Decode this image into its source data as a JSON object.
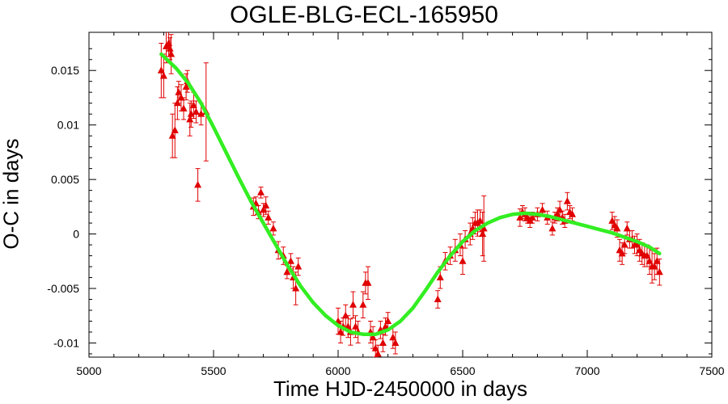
{
  "chart_data": {
    "type": "scatter",
    "title": "OGLE-BLG-ECL-165950",
    "xlabel": "Time HJD-2450000 in days",
    "ylabel": "O-C in days",
    "xlim": [
      5000,
      7500
    ],
    "ylim": [
      -0.0113,
      0.0185
    ],
    "x_ticks": [
      5000,
      5500,
      6000,
      6500,
      7000,
      7500
    ],
    "x_tick_labels": [
      "5000",
      "5500",
      "6000",
      "6500",
      "7000",
      "7500"
    ],
    "y_ticks": [
      0.015,
      0.01,
      0.005,
      0,
      -0.005,
      -0.01
    ],
    "y_tick_labels": [
      "0.015",
      "0.01",
      "0.005",
      "0",
      "-0.005",
      "-0.01"
    ],
    "grid": false,
    "legend": "none",
    "colors": {
      "points": "#e00000",
      "fit": "#33ee22"
    },
    "series": [
      {
        "type": "scatter-errorbar",
        "points": [
          [
            5290,
            0.015,
            0.0025
          ],
          [
            5300,
            0.0145,
            0.002
          ],
          [
            5310,
            0.0172,
            0.0015
          ],
          [
            5320,
            0.0175,
            0.0012
          ],
          [
            5325,
            0.017,
            0.001
          ],
          [
            5330,
            0.0165,
            0.0018
          ],
          [
            5335,
            0.009,
            0.002
          ],
          [
            5345,
            0.0095,
            0.0025
          ],
          [
            5355,
            0.012,
            0.0015
          ],
          [
            5360,
            0.013,
            0.001
          ],
          [
            5370,
            0.0125,
            0.0012
          ],
          [
            5380,
            0.0115,
            0.001
          ],
          [
            5390,
            0.0135,
            0.0012
          ],
          [
            5395,
            0.014,
            0.001
          ],
          [
            5405,
            0.0105,
            0.0015
          ],
          [
            5410,
            0.011,
            0.0012
          ],
          [
            5420,
            0.0118,
            0.0012
          ],
          [
            5430,
            0.0112,
            0.001
          ],
          [
            5437,
            0.0045,
            0.0015
          ],
          [
            5450,
            0.011,
            0.001
          ],
          [
            5470,
            0.0112,
            0.0045
          ],
          [
            5660,
            0.0025,
            0.0008
          ],
          [
            5670,
            0.0028,
            0.0006
          ],
          [
            5680,
            0.002,
            0.0006
          ],
          [
            5690,
            0.0038,
            0.0005
          ],
          [
            5700,
            0.0022,
            0.0006
          ],
          [
            5710,
            0.0026,
            0.0008
          ],
          [
            5720,
            0.0015,
            0.0006
          ],
          [
            5740,
            0.0005,
            0.0006
          ],
          [
            5760,
            -0.0015,
            0.0008
          ],
          [
            5780,
            -0.002,
            0.0008
          ],
          [
            5795,
            -0.0035,
            0.0006
          ],
          [
            5810,
            -0.0025,
            0.0007
          ],
          [
            5820,
            -0.004,
            0.001
          ],
          [
            5830,
            -0.005,
            0.0015
          ],
          [
            5840,
            -0.003,
            0.0008
          ],
          [
            6000,
            -0.008,
            0.0012
          ],
          [
            6010,
            -0.009,
            0.001
          ],
          [
            6020,
            -0.0085,
            0.0008
          ],
          [
            6030,
            -0.0075,
            0.001
          ],
          [
            6040,
            -0.0085,
            0.001
          ],
          [
            6050,
            -0.009,
            0.0012
          ],
          [
            6060,
            -0.0065,
            0.0012
          ],
          [
            6070,
            -0.0085,
            0.001
          ],
          [
            6080,
            -0.009,
            0.001
          ],
          [
            6100,
            -0.0065,
            0.0012
          ],
          [
            6110,
            -0.0045,
            0.001
          ],
          [
            6120,
            -0.0045,
            0.0015
          ],
          [
            6130,
            -0.009,
            0.001
          ],
          [
            6140,
            -0.0095,
            0.001
          ],
          [
            6150,
            -0.0105,
            0.0008
          ],
          [
            6160,
            -0.011,
            0.0008
          ],
          [
            6170,
            -0.0088,
            0.0008
          ],
          [
            6180,
            -0.01,
            0.0008
          ],
          [
            6190,
            -0.0085,
            0.0008
          ],
          [
            6200,
            -0.008,
            0.0008
          ],
          [
            6220,
            -0.0095,
            0.001
          ],
          [
            6230,
            -0.01,
            0.001
          ],
          [
            6400,
            -0.006,
            0.0008
          ],
          [
            6410,
            -0.004,
            0.001
          ],
          [
            6430,
            -0.0025,
            0.0008
          ],
          [
            6450,
            -0.002,
            0.0008
          ],
          [
            6470,
            -0.0015,
            0.001
          ],
          [
            6490,
            -0.001,
            0.001
          ],
          [
            6500,
            -0.0025,
            0.0012
          ],
          [
            6510,
            -0.0005,
            0.0008
          ],
          [
            6530,
            0.0,
            0.001
          ],
          [
            6540,
            0.0005,
            0.001
          ],
          [
            6550,
            0.001,
            0.001
          ],
          [
            6560,
            0.001,
            0.0012
          ],
          [
            6570,
            0.0012,
            0.001
          ],
          [
            6580,
            0.0,
            0.002
          ],
          [
            6585,
            0.0005,
            0.003
          ],
          [
            6730,
            0.0015,
            0.0008
          ],
          [
            6740,
            0.002,
            0.0006
          ],
          [
            6750,
            0.0018,
            0.0006
          ],
          [
            6760,
            0.0015,
            0.0005
          ],
          [
            6770,
            0.0012,
            0.0006
          ],
          [
            6780,
            0.0015,
            0.0005
          ],
          [
            6800,
            0.0018,
            0.0006
          ],
          [
            6820,
            0.0022,
            0.0006
          ],
          [
            6840,
            0.0015,
            0.0006
          ],
          [
            6860,
            0.0005,
            0.0006
          ],
          [
            6870,
            0.0015,
            0.0005
          ],
          [
            6880,
            0.0018,
            0.0006
          ],
          [
            6890,
            0.0022,
            0.0008
          ],
          [
            6900,
            0.0015,
            0.0006
          ],
          [
            6910,
            0.0012,
            0.0006
          ],
          [
            6920,
            0.003,
            0.0008
          ],
          [
            6930,
            0.002,
            0.0006
          ],
          [
            6940,
            0.0018,
            0.0006
          ],
          [
            7100,
            0.0012,
            0.0008
          ],
          [
            7110,
            0.0008,
            0.0008
          ],
          [
            7120,
            0.0005,
            0.0008
          ],
          [
            7130,
            -0.0015,
            0.001
          ],
          [
            7140,
            -0.0018,
            0.001
          ],
          [
            7150,
            -0.001,
            0.0008
          ],
          [
            7160,
            0.0005,
            0.0006
          ],
          [
            7170,
            -0.0005,
            0.0008
          ],
          [
            7180,
            -0.0005,
            0.0008
          ],
          [
            7190,
            -0.001,
            0.0008
          ],
          [
            7200,
            -0.001,
            0.001
          ],
          [
            7210,
            -0.0015,
            0.001
          ],
          [
            7220,
            -0.0018,
            0.001
          ],
          [
            7230,
            -0.002,
            0.001
          ],
          [
            7240,
            -0.002,
            0.001
          ],
          [
            7250,
            -0.0025,
            0.0012
          ],
          [
            7260,
            -0.003,
            0.0015
          ],
          [
            7270,
            -0.003,
            0.0012
          ],
          [
            7280,
            -0.0025,
            0.0012
          ],
          [
            7290,
            -0.0035,
            0.0012
          ]
        ]
      },
      {
        "type": "line",
        "x": [
          5290,
          5350,
          5400,
          5450,
          5500,
          5550,
          5600,
          5650,
          5700,
          5750,
          5800,
          5850,
          5900,
          5950,
          6000,
          6050,
          6100,
          6150,
          6200,
          6250,
          6300,
          6350,
          6400,
          6450,
          6500,
          6550,
          6600,
          6650,
          6700,
          6750,
          6800,
          6850,
          6900,
          6950,
          7000,
          7050,
          7100,
          7150,
          7200,
          7250,
          7290
        ],
        "y": [
          0.0165,
          0.0152,
          0.0138,
          0.012,
          0.0098,
          0.0075,
          0.0052,
          0.003,
          0.001,
          -0.001,
          -0.003,
          -0.0048,
          -0.0063,
          -0.0075,
          -0.0084,
          -0.009,
          -0.0092,
          -0.0092,
          -0.0088,
          -0.008,
          -0.0068,
          -0.0052,
          -0.0035,
          -0.002,
          -0.0007,
          0.0003,
          0.001,
          0.0015,
          0.0018,
          0.0019,
          0.0018,
          0.0016,
          0.0013,
          0.001,
          0.0007,
          0.0004,
          0.0001,
          -0.0003,
          -0.0007,
          -0.0012,
          -0.0018
        ]
      }
    ]
  }
}
